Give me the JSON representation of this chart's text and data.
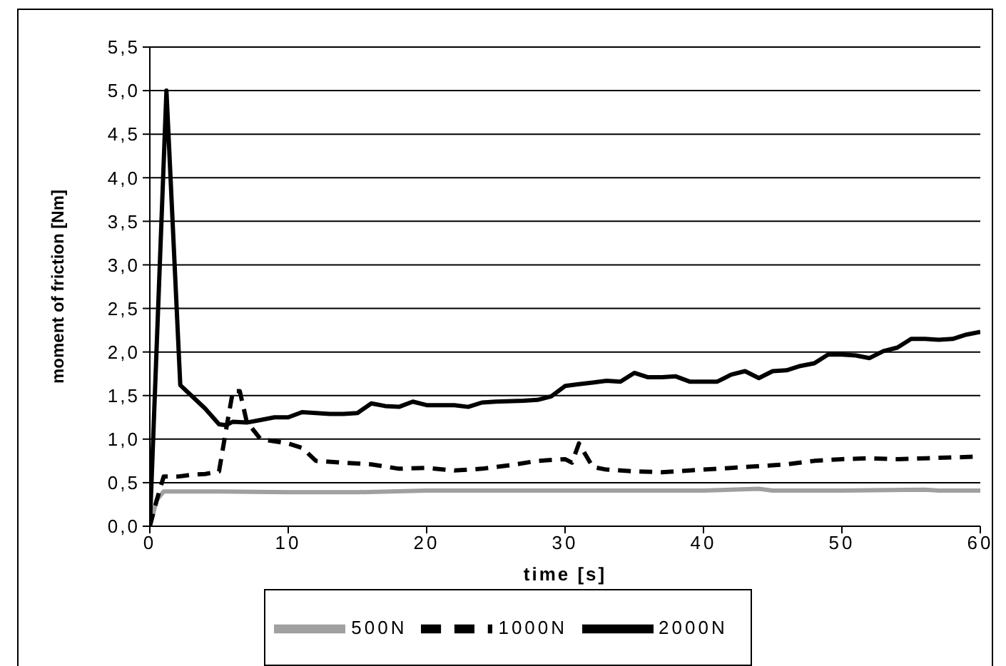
{
  "chart_data": {
    "type": "line",
    "xlabel": "time [s]",
    "ylabel": "moment of friction [Nm]",
    "xlim": [
      0,
      60
    ],
    "xticks": [
      0,
      10,
      20,
      30,
      40,
      50,
      60
    ],
    "ylim": [
      0,
      5.5
    ],
    "yticks": [
      {
        "value": 0,
        "label": "0,0"
      },
      {
        "value": 0.5,
        "label": "0,5"
      },
      {
        "value": 1,
        "label": "1,0"
      },
      {
        "value": 1.5,
        "label": "1,5"
      },
      {
        "value": 2,
        "label": "2,0"
      },
      {
        "value": 2.5,
        "label": "2,5"
      },
      {
        "value": 3,
        "label": "3,0"
      },
      {
        "value": 3.5,
        "label": "3,5"
      },
      {
        "value": 4,
        "label": "4,0"
      },
      {
        "value": 4.5,
        "label": "4,5"
      },
      {
        "value": 5,
        "label": "5,0"
      },
      {
        "value": 5.5,
        "label": "5,5"
      }
    ],
    "grid": "y",
    "legend": "bottom",
    "marker": "none",
    "series": [
      {
        "name": "500N",
        "color": "#a0a0a0",
        "line_style": "solid",
        "x": [
          0,
          0.5,
          1,
          2,
          5,
          10,
          15,
          20,
          25,
          30,
          40,
          44,
          45,
          50,
          56,
          57,
          60
        ],
        "values": [
          0,
          0.3,
          0.4,
          0.4,
          0.4,
          0.39,
          0.39,
          0.41,
          0.41,
          0.41,
          0.41,
          0.43,
          0.41,
          0.41,
          0.42,
          0.41,
          0.41
        ]
      },
      {
        "name": "1000N",
        "color": "#000000",
        "line_style": "dashed",
        "x": [
          0,
          0.5,
          1,
          2,
          3,
          4,
          5,
          5.5,
          6,
          6.5,
          7,
          8,
          10,
          11,
          12,
          14,
          16,
          18,
          20,
          22,
          24,
          26,
          28,
          30,
          30.5,
          31,
          32,
          33,
          35,
          37,
          40,
          42,
          44,
          46,
          48,
          50,
          52,
          54,
          56,
          58,
          60
        ],
        "values": [
          0,
          0.3,
          0.57,
          0.57,
          0.59,
          0.6,
          0.63,
          1.1,
          1.55,
          1.55,
          1.2,
          1.0,
          0.95,
          0.9,
          0.75,
          0.73,
          0.71,
          0.66,
          0.67,
          0.64,
          0.66,
          0.7,
          0.75,
          0.77,
          0.73,
          0.95,
          0.68,
          0.65,
          0.63,
          0.62,
          0.65,
          0.67,
          0.69,
          0.71,
          0.75,
          0.77,
          0.78,
          0.77,
          0.78,
          0.79,
          0.8
        ]
      },
      {
        "name": "2000N",
        "color": "#000000",
        "line_style": "solid",
        "x": [
          0,
          1.2,
          2.2,
          3,
          4,
          5,
          5.5,
          6,
          7,
          8,
          9,
          10,
          11,
          12,
          13,
          14,
          15,
          16,
          17,
          18,
          19,
          20,
          21,
          22,
          23,
          24,
          25,
          27,
          28,
          29,
          30,
          31,
          32,
          33,
          34,
          35,
          36,
          37,
          38,
          39,
          40,
          41,
          42,
          43,
          44,
          45,
          46,
          47,
          48,
          49,
          50,
          51,
          52,
          53,
          54,
          55,
          56,
          57,
          58,
          59,
          60
        ],
        "values": [
          0,
          5.0,
          1.62,
          1.5,
          1.35,
          1.17,
          1.16,
          1.2,
          1.19,
          1.22,
          1.25,
          1.25,
          1.31,
          1.3,
          1.29,
          1.29,
          1.3,
          1.41,
          1.38,
          1.37,
          1.43,
          1.39,
          1.39,
          1.39,
          1.37,
          1.42,
          1.43,
          1.44,
          1.45,
          1.49,
          1.61,
          1.63,
          1.65,
          1.67,
          1.66,
          1.76,
          1.71,
          1.71,
          1.72,
          1.66,
          1.66,
          1.66,
          1.74,
          1.78,
          1.7,
          1.78,
          1.79,
          1.84,
          1.87,
          1.97,
          1.97,
          1.96,
          1.93,
          2.01,
          2.05,
          2.15,
          2.15,
          2.14,
          2.15,
          2.2,
          2.23
        ]
      }
    ]
  }
}
